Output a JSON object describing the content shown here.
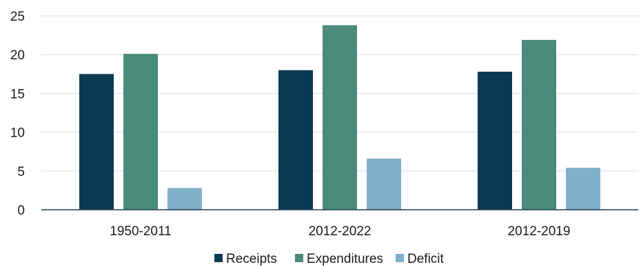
{
  "chart_data": {
    "type": "bar",
    "categories": [
      "1950-2011",
      "2012-2022",
      "2012-2019"
    ],
    "series": [
      {
        "name": "Receipts",
        "color": "#0b3a57",
        "values": [
          17.5,
          18.0,
          17.8
        ]
      },
      {
        "name": "Expenditures",
        "color": "#4a8a78",
        "values": [
          20.1,
          23.8,
          21.9
        ]
      },
      {
        "name": "Deficit",
        "color": "#7fb0c9",
        "values": [
          2.8,
          6.6,
          5.4
        ]
      }
    ],
    "yticks": [
      0,
      5,
      10,
      15,
      20,
      25
    ],
    "ylim": [
      0,
      25
    ],
    "grid": true,
    "legend_position": "bottom-center",
    "title": "",
    "xlabel": "",
    "ylabel": ""
  }
}
